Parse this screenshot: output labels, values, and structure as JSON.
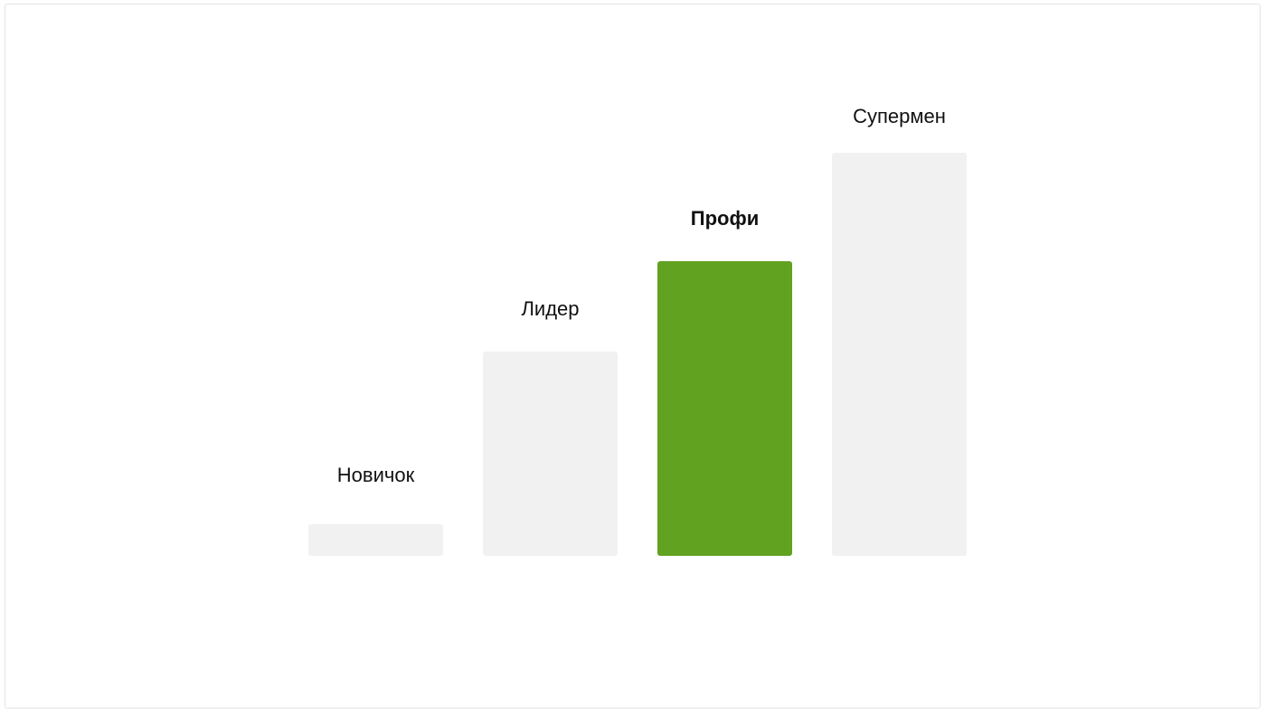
{
  "levels": [
    {
      "label": "Новичок",
      "active": false
    },
    {
      "label": "Лидер",
      "active": false
    },
    {
      "label": "Профи",
      "active": true
    },
    {
      "label": "Супермен",
      "active": false
    }
  ],
  "colors": {
    "active": "#61a221",
    "inactive": "#f1f1f1"
  }
}
